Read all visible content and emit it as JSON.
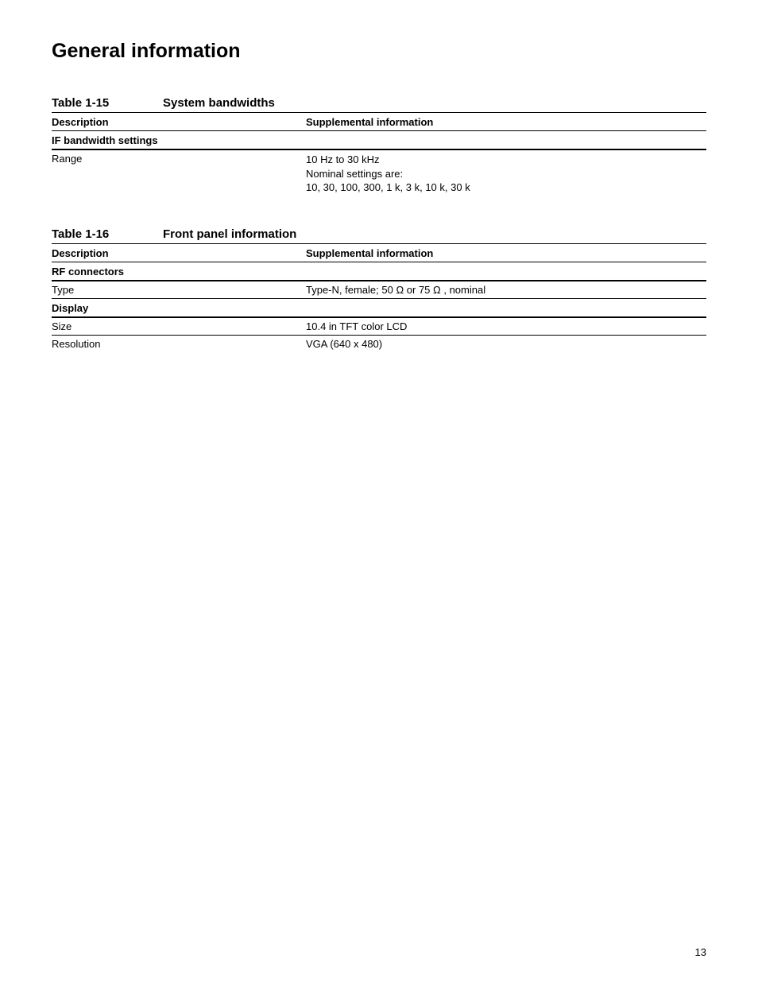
{
  "section_title": "General information",
  "page_number": "13",
  "tables": {
    "t1": {
      "number": "Table 1-15",
      "title": "System bandwidths",
      "col_left": "Description",
      "col_right": "Supplemental information",
      "groups": [
        {
          "heading": "IF bandwidth settings",
          "rows": [
            {
              "left": "Range",
              "right_lines": [
                "10 Hz to 30 kHz",
                "Nominal settings are:",
                "10, 30, 100, 300, 1 k, 3 k, 10 k, 30 k"
              ],
              "top_border": true,
              "bottom_border": false
            }
          ]
        }
      ]
    },
    "t2": {
      "number": "Table 1-16",
      "title": "Front panel information",
      "col_left": "Description",
      "col_right": "Supplemental information",
      "groups": [
        {
          "heading": "RF connectors",
          "rows": [
            {
              "left": "Type",
              "right_lines": [
                "Type-N, female; 50 Ω or 75 Ω , nominal"
              ],
              "top_border": true,
              "bottom_border": true
            }
          ]
        },
        {
          "heading": "Display",
          "rows": [
            {
              "left": "Size",
              "right_lines": [
                "10.4 in TFT color LCD"
              ],
              "top_border": true,
              "bottom_border": true
            },
            {
              "left": "Resolution",
              "right_lines": [
                "VGA (640 x 480)"
              ],
              "top_border": false,
              "bottom_border": false
            }
          ]
        }
      ]
    }
  }
}
